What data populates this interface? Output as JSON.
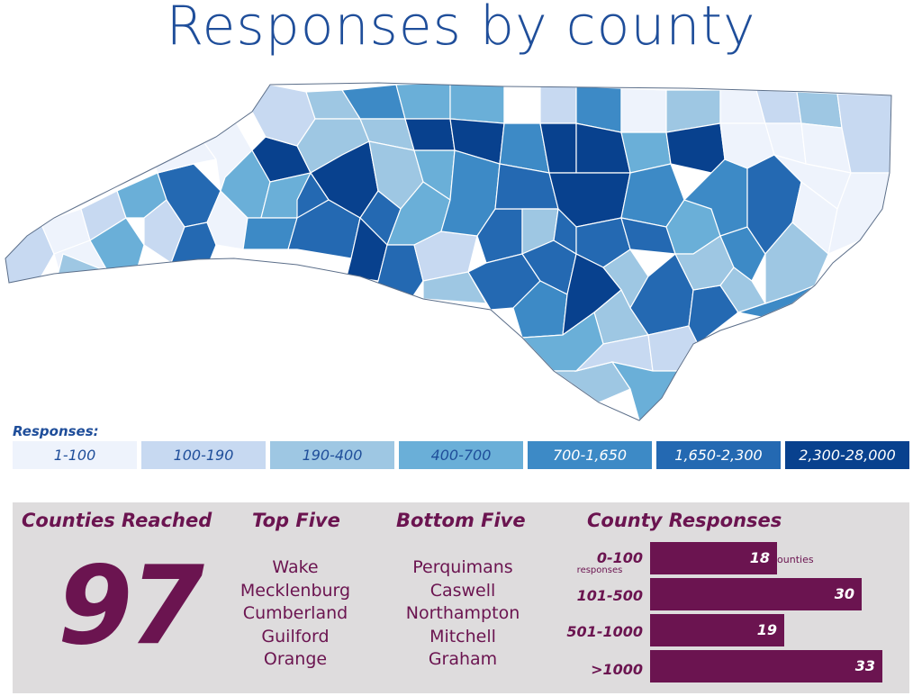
{
  "title": "Responses by county",
  "colors": {
    "bin1": "#eef3fc",
    "bin2": "#c7d9f1",
    "bin3": "#9ec7e3",
    "bin4": "#6aafd8",
    "bin5": "#3d8ac6",
    "bin6": "#2469b2",
    "bin7": "#08418e",
    "accent": "#6b1450",
    "panel": "#dedcdd",
    "title": "#1f4e9a"
  },
  "map": {
    "region": "North Carolina",
    "legend_title": "Responses:",
    "bins": [
      {
        "label": "1-100",
        "color": "#eef3fc",
        "text_color": "#1f4e9a"
      },
      {
        "label": "100-190",
        "color": "#c7d9f1",
        "text_color": "#1f4e9a"
      },
      {
        "label": "190-400",
        "color": "#9ec7e3",
        "text_color": "#1f4e9a"
      },
      {
        "label": "400-700",
        "color": "#6aafd8",
        "text_color": "#1f4e9a"
      },
      {
        "label": "700-1,650",
        "color": "#3d8ac6",
        "text_color": "#ffffff"
      },
      {
        "label": "1,650-2,300",
        "color": "#2469b2",
        "text_color": "#ffffff"
      },
      {
        "label": "2,300-28,000",
        "color": "#08418e",
        "text_color": "#ffffff"
      }
    ]
  },
  "stats": {
    "counties_heading": "Counties Reached",
    "counties_value": "97",
    "top_heading": "Top Five",
    "top_five": [
      "Wake",
      "Mecklenburg",
      "Cumberland",
      "Guilford",
      "Orange"
    ],
    "bottom_heading": "Bottom Five",
    "bottom_five": [
      "Perquimans",
      "Caswell",
      "Northampton",
      "Mitchell",
      "Graham"
    ],
    "responses_heading": "County Responses",
    "responses_sublabel": "responses",
    "responses_unit": "counties"
  },
  "chart_data": {
    "type": "bar",
    "title": "County Responses",
    "categories": [
      "0-100",
      "101-500",
      "501-1000",
      ">1000"
    ],
    "values": [
      18,
      30,
      19,
      33
    ],
    "orientation": "horizontal"
  }
}
